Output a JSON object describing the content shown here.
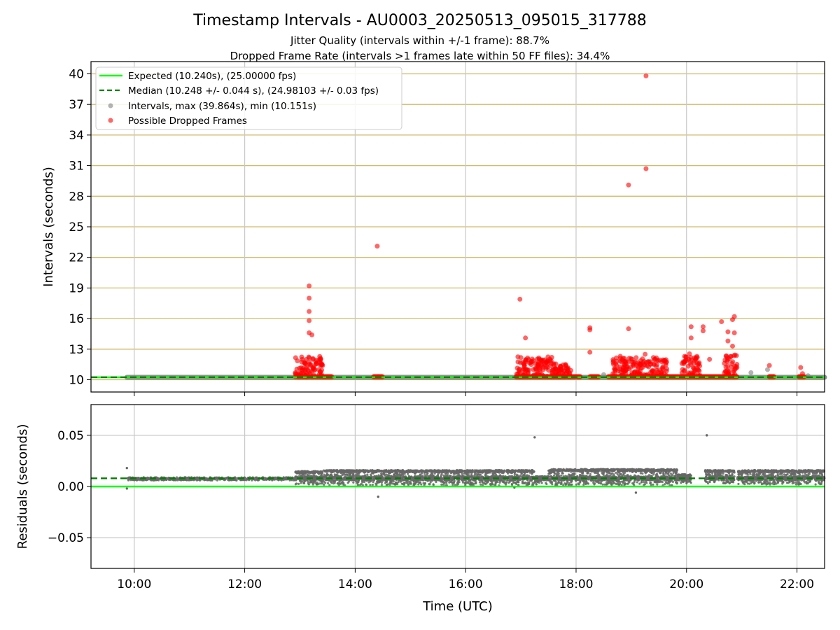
{
  "title": "Timestamp Intervals - AU0003_20250513_095015_317788",
  "subtitle_1": "Jitter Quality (intervals within +/-1 frame): 88.7%",
  "subtitle_2": "Dropped Frame Rate (intervals >1 frames late within 50 FF files): 34.4%",
  "colors": {
    "expected": "#00ff00",
    "median": "#008000",
    "intervals": "#808080",
    "dropped": "#ff0000",
    "hgrid_top": "#d2b96a",
    "vgrid": "#c8c8c8"
  },
  "chart_data": [
    {
      "type": "scatter",
      "panel": "intervals",
      "ylabel": "Intervals (seconds)",
      "xlim": [
        "09:13",
        "22:30"
      ],
      "ylim": [
        8.8,
        41.2
      ],
      "grid": "on",
      "legend_position": "top-left",
      "yticks": [
        "10",
        "13",
        "16",
        "19",
        "22",
        "25",
        "28",
        "31",
        "34",
        "37",
        "40"
      ],
      "legend": [
        "Expected (10.240s), (25.00000 fps)",
        "Median (10.248 +/- 0.044 s), (24.98103 +/- 0.03 fps)",
        "Intervals, max (39.864s), min (10.151s)",
        "Possible Dropped Frames"
      ],
      "expected_line": 10.24,
      "median_line": 10.248,
      "baseline_segments": [
        {
          "from": "09:52",
          "to": "22:30",
          "value": 10.24
        }
      ],
      "dropped_frame_clusters": [
        {
          "from": "12:55",
          "to": "13:25",
          "low": 10.3,
          "high": 12.3
        },
        {
          "from": "16:55",
          "to": "17:35",
          "low": 10.3,
          "high": 12.3
        },
        {
          "from": "17:35",
          "to": "17:55",
          "low": 10.3,
          "high": 11.6
        },
        {
          "from": "18:40",
          "to": "19:40",
          "low": 10.3,
          "high": 12.2
        },
        {
          "from": "19:55",
          "to": "20:15",
          "low": 10.3,
          "high": 12.6
        },
        {
          "from": "20:40",
          "to": "20:55",
          "low": 10.3,
          "high": 12.6
        }
      ],
      "dropped_frames": [
        {
          "x": "13:10",
          "y": 19.2
        },
        {
          "x": "13:10",
          "y": 18.0
        },
        {
          "x": "13:10",
          "y": 16.7
        },
        {
          "x": "13:10",
          "y": 15.8
        },
        {
          "x": "13:10",
          "y": 14.6
        },
        {
          "x": "13:13",
          "y": 14.4
        },
        {
          "x": "14:24",
          "y": 23.1
        },
        {
          "x": "14:25",
          "y": 10.3
        },
        {
          "x": "16:59",
          "y": 17.9
        },
        {
          "x": "17:05",
          "y": 14.1
        },
        {
          "x": "18:15",
          "y": 15.1
        },
        {
          "x": "18:15",
          "y": 14.9
        },
        {
          "x": "18:15",
          "y": 12.7
        },
        {
          "x": "18:48",
          "y": 12.3
        },
        {
          "x": "18:57",
          "y": 29.1
        },
        {
          "x": "18:57",
          "y": 15.0
        },
        {
          "x": "19:16",
          "y": 39.8
        },
        {
          "x": "19:16",
          "y": 30.7
        },
        {
          "x": "19:15",
          "y": 12.5
        },
        {
          "x": "20:05",
          "y": 15.2
        },
        {
          "x": "20:05",
          "y": 14.1
        },
        {
          "x": "20:18",
          "y": 15.2
        },
        {
          "x": "20:18",
          "y": 14.8
        },
        {
          "x": "20:25",
          "y": 12.0
        },
        {
          "x": "20:38",
          "y": 15.7
        },
        {
          "x": "20:45",
          "y": 14.7
        },
        {
          "x": "20:45",
          "y": 13.8
        },
        {
          "x": "20:50",
          "y": 15.9
        },
        {
          "x": "20:52",
          "y": 16.2
        },
        {
          "x": "20:52",
          "y": 14.6
        },
        {
          "x": "20:50",
          "y": 13.3
        },
        {
          "x": "21:30",
          "y": 11.4
        },
        {
          "x": "21:30",
          "y": 10.3
        },
        {
          "x": "21:35",
          "y": 10.3
        },
        {
          "x": "22:04",
          "y": 11.2
        },
        {
          "x": "22:06",
          "y": 10.6
        }
      ],
      "gray_points": [
        {
          "x": "18:30",
          "y": 10.5
        },
        {
          "x": "18:48",
          "y": 10.8
        },
        {
          "x": "21:10",
          "y": 10.7
        },
        {
          "x": "21:28",
          "y": 11.0
        },
        {
          "x": "22:12",
          "y": 10.4
        }
      ]
    },
    {
      "type": "scatter",
      "panel": "residuals",
      "xlabel": "Time (UTC)",
      "ylabel": "Residuals (seconds)",
      "xlim": [
        "09:13",
        "22:30"
      ],
      "ylim": [
        -0.08,
        0.08
      ],
      "grid": "on",
      "yticks": [
        "−0.05",
        "0.00",
        "0.05"
      ],
      "xticks": [
        "10:00",
        "12:00",
        "14:00",
        "16:00",
        "18:00",
        "20:00",
        "22:00"
      ],
      "expected_line": 0.0,
      "median_line": 0.008,
      "clusters": [
        {
          "from": "09:53",
          "to": "12:55",
          "low": 0.006,
          "high": 0.009
        },
        {
          "from": "12:55",
          "to": "13:25",
          "low": 0.002,
          "high": 0.015
        },
        {
          "from": "13:25",
          "to": "17:15",
          "low": 0.001,
          "high": 0.016
        },
        {
          "from": "17:15",
          "to": "17:30",
          "low": 0.002,
          "high": 0.01
        },
        {
          "from": "17:30",
          "to": "19:50",
          "low": 0.001,
          "high": 0.017
        },
        {
          "from": "19:50",
          "to": "20:05",
          "low": 0.003,
          "high": 0.012
        },
        {
          "from": "20:20",
          "to": "20:52",
          "low": 0.003,
          "high": 0.016
        },
        {
          "from": "20:55",
          "to": "22:30",
          "low": 0.002,
          "high": 0.016
        }
      ],
      "outliers": [
        {
          "x": "17:15",
          "y": 0.048
        },
        {
          "x": "20:22",
          "y": 0.05
        },
        {
          "x": "09:52",
          "y": 0.018
        },
        {
          "x": "09:52",
          "y": -0.002
        },
        {
          "x": "14:25",
          "y": -0.01
        },
        {
          "x": "19:05",
          "y": -0.006
        },
        {
          "x": "16:53",
          "y": -0.001
        }
      ]
    }
  ]
}
